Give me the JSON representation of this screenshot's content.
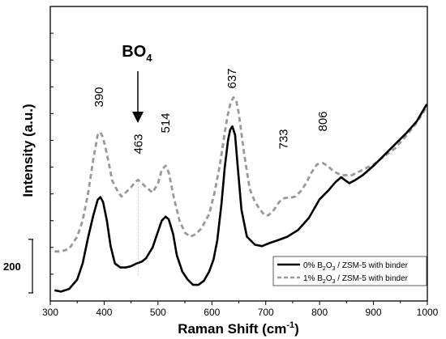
{
  "chart_data": {
    "type": "line",
    "xlabel": "Raman Shift (cm",
    "xlabel_sup": "-1",
    "xlabel_end": ")",
    "ylabel": "Intensity (a.u.)",
    "xlim": [
      300,
      1000
    ],
    "ylim": [
      0,
      1100
    ],
    "x_ticks": [
      300,
      400,
      500,
      600,
      700,
      800,
      900,
      1000
    ],
    "y_ticks_labels_shown": false,
    "scale_bar": {
      "label": "200",
      "value": 200
    },
    "legend": {
      "position": "bottom-right",
      "entries": [
        {
          "prefix": "0% B",
          "sub": "2",
          "mid": "O",
          "sub2": "3",
          "suffix": " / ZSM-5 with binder"
        },
        {
          "prefix": "1% B",
          "sub": "2",
          "mid": "O",
          "sub2": "3",
          "suffix": " / ZSM-5 with binder"
        }
      ]
    },
    "series": [
      {
        "color": "#000000",
        "style": "solid",
        "x": [
          308,
          320,
          335,
          350,
          360,
          370,
          380,
          388,
          393,
          398,
          405,
          412,
          420,
          430,
          440,
          450,
          460,
          470,
          478,
          490,
          500,
          507,
          514,
          520,
          528,
          535,
          545,
          555,
          565,
          575,
          585,
          595,
          603,
          610,
          618,
          624,
          630,
          634,
          638,
          643,
          648,
          655,
          665,
          680,
          693,
          705,
          720,
          740,
          760,
          780,
          800,
          815,
          830,
          840,
          848,
          855,
          865,
          880,
          900,
          920,
          940,
          960,
          980,
          999
        ],
        "y": [
          40,
          35,
          45,
          80,
          140,
          235,
          320,
          378,
          388,
          370,
          300,
          205,
          140,
          125,
          125,
          130,
          140,
          147,
          160,
          200,
          260,
          300,
          315,
          305,
          250,
          170,
          110,
          80,
          60,
          60,
          75,
          110,
          155,
          225,
          365,
          500,
          600,
          640,
          652,
          620,
          500,
          340,
          240,
          210,
          205,
          215,
          225,
          240,
          265,
          310,
          380,
          410,
          445,
          462,
          450,
          440,
          450,
          470,
          505,
          545,
          585,
          625,
          670,
          735
        ]
      },
      {
        "color": "#999999",
        "style": "dashed",
        "x": [
          308,
          320,
          335,
          350,
          360,
          370,
          380,
          388,
          393,
          398,
          405,
          415,
          425,
          432,
          440,
          450,
          458,
          463,
          470,
          478,
          490,
          500,
          507,
          514,
          520,
          530,
          540,
          550,
          560,
          570,
          580,
          595,
          605,
          615,
          624,
          630,
          635,
          640,
          645,
          650,
          660,
          670,
          680,
          690,
          698,
          705,
          715,
          725,
          735,
          745,
          755,
          765,
          775,
          785,
          795,
          806,
          815,
          825,
          840,
          860,
          880,
          900,
          920,
          940,
          960,
          980,
          999
        ],
        "y": [
          185,
          185,
          195,
          240,
          300,
          400,
          530,
          620,
          630,
          610,
          550,
          450,
          410,
          390,
          405,
          425,
          445,
          452,
          440,
          425,
          405,
          440,
          490,
          505,
          480,
          380,
          300,
          255,
          240,
          250,
          270,
          325,
          405,
          510,
          630,
          700,
          742,
          760,
          750,
          700,
          550,
          420,
          370,
          340,
          320,
          320,
          340,
          370,
          385,
          385,
          390,
          410,
          440,
          480,
          510,
          515,
          505,
          485,
          470,
          470,
          490,
          510,
          540,
          570,
          615,
          665,
          725
        ]
      }
    ],
    "annotations": [
      {
        "text": "390",
        "x": 390
      },
      {
        "text": "463",
        "x": 463
      },
      {
        "text": "514",
        "x": 514
      },
      {
        "text": "637",
        "x": 637
      },
      {
        "text": "733",
        "x": 733
      },
      {
        "text": "806",
        "x": 806
      }
    ],
    "marker": {
      "label": "BO",
      "sub": "4",
      "x": 463
    }
  }
}
